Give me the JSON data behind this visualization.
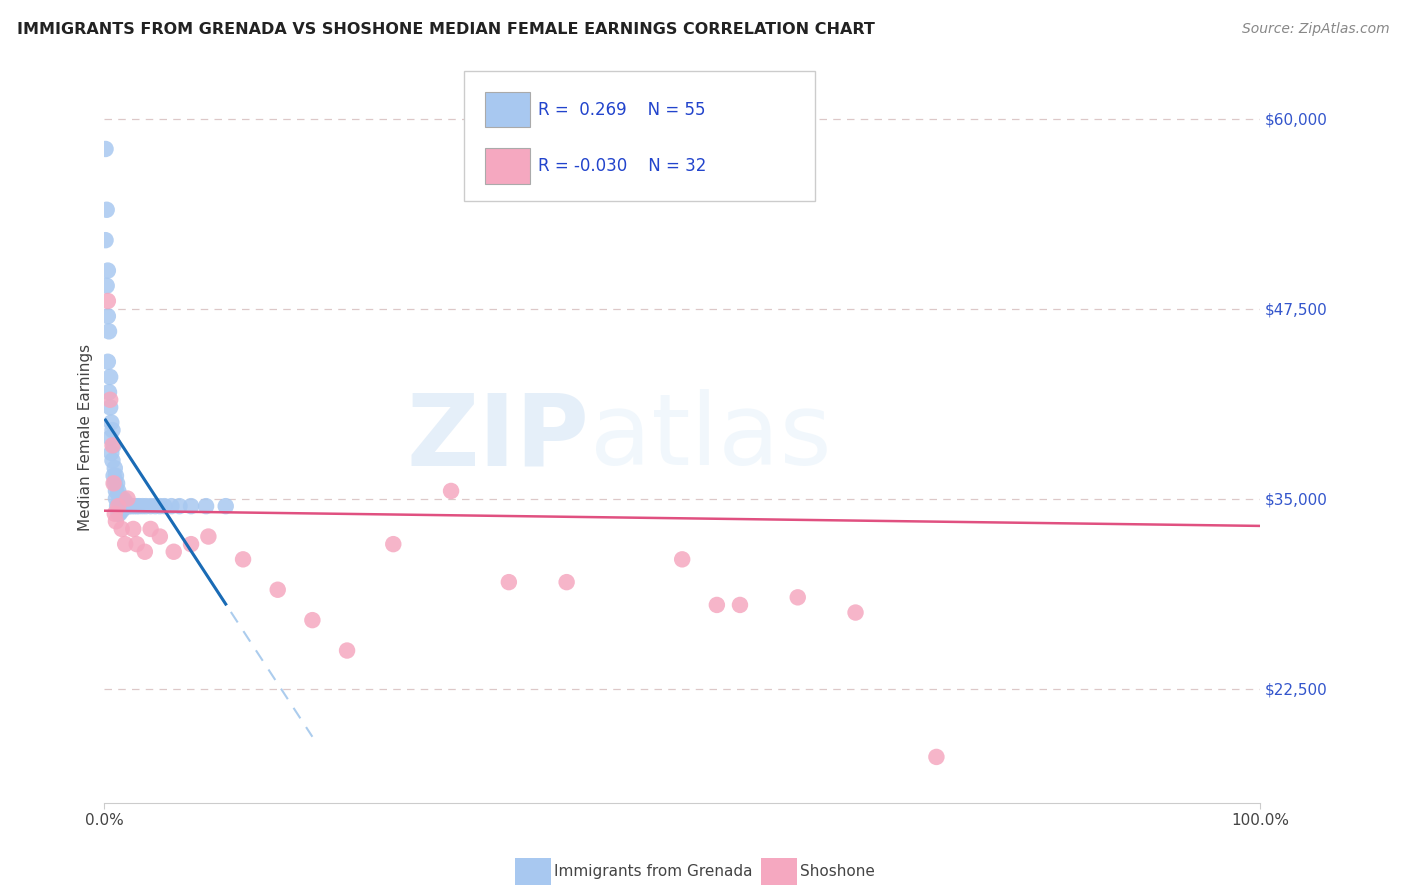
{
  "title": "IMMIGRANTS FROM GRENADA VS SHOSHONE MEDIAN FEMALE EARNINGS CORRELATION CHART",
  "source": "Source: ZipAtlas.com",
  "ylabel": "Median Female Earnings",
  "xlim": [
    0,
    1.0
  ],
  "ylim": [
    15000,
    63000
  ],
  "yticks": [
    22500,
    35000,
    47500,
    60000
  ],
  "ytick_labels": [
    "$22,500",
    "$35,000",
    "$47,500",
    "$60,000"
  ],
  "xticks": [
    0.0,
    1.0
  ],
  "xtick_labels": [
    "0.0%",
    "100.0%"
  ],
  "blue_scatter_x": [
    0.001,
    0.001,
    0.002,
    0.002,
    0.003,
    0.003,
    0.003,
    0.004,
    0.004,
    0.005,
    0.005,
    0.005,
    0.006,
    0.006,
    0.007,
    0.007,
    0.008,
    0.008,
    0.009,
    0.009,
    0.01,
    0.01,
    0.01,
    0.011,
    0.011,
    0.012,
    0.012,
    0.013,
    0.013,
    0.014,
    0.014,
    0.015,
    0.015,
    0.016,
    0.017,
    0.018,
    0.019,
    0.02,
    0.021,
    0.022,
    0.024,
    0.026,
    0.028,
    0.03,
    0.033,
    0.036,
    0.04,
    0.044,
    0.048,
    0.052,
    0.058,
    0.065,
    0.075,
    0.088,
    0.105
  ],
  "blue_scatter_y": [
    58000,
    52000,
    54000,
    49000,
    50000,
    47000,
    44000,
    46000,
    42000,
    43000,
    41000,
    39000,
    40000,
    38000,
    39500,
    37500,
    38500,
    36500,
    37000,
    36000,
    36500,
    35500,
    35000,
    36000,
    34500,
    35500,
    34000,
    35000,
    34000,
    35000,
    34500,
    34800,
    34200,
    35000,
    34500,
    34800,
    34500,
    34500,
    34500,
    34500,
    34500,
    34500,
    34500,
    34500,
    34500,
    34500,
    34500,
    34500,
    34500,
    34500,
    34500,
    34500,
    34500,
    34500,
    34500
  ],
  "pink_scatter_x": [
    0.003,
    0.005,
    0.007,
    0.008,
    0.009,
    0.01,
    0.012,
    0.015,
    0.018,
    0.02,
    0.025,
    0.028,
    0.035,
    0.04,
    0.048,
    0.06,
    0.075,
    0.09,
    0.12,
    0.15,
    0.18,
    0.21,
    0.25,
    0.3,
    0.35,
    0.4,
    0.5,
    0.53,
    0.55,
    0.6,
    0.65,
    0.72
  ],
  "pink_scatter_y": [
    48000,
    41500,
    38500,
    36000,
    34000,
    33500,
    34500,
    33000,
    32000,
    35000,
    33000,
    32000,
    31500,
    33000,
    32500,
    31500,
    32000,
    32500,
    31000,
    29000,
    27000,
    25000,
    32000,
    35500,
    29500,
    29500,
    31000,
    28000,
    28000,
    28500,
    27500,
    18000
  ],
  "blue_color": "#a8c8f0",
  "pink_color": "#f5a8c0",
  "blue_line_color": "#1a6bb5",
  "pink_line_color": "#e05080",
  "blue_dashed_color": "#90bce8",
  "watermark_zip": "ZIP",
  "watermark_atlas": "atlas",
  "background_color": "#ffffff",
  "grid_color": "#ddc8c8",
  "legend_label1": "Immigrants from Grenada",
  "legend_label2": "Shoshone",
  "r1": "0.269",
  "n1": "55",
  "r2": "-0.030",
  "n2": "32"
}
